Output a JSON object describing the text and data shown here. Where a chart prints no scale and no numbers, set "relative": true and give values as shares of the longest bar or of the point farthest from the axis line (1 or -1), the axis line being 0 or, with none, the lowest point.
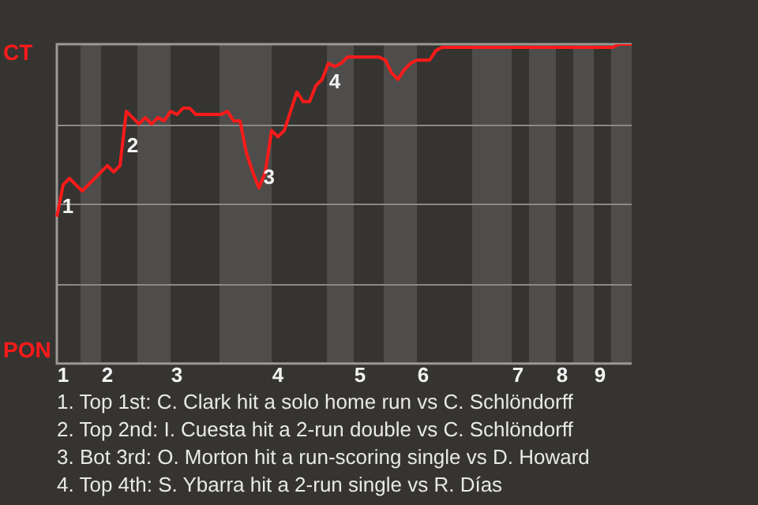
{
  "chart_data": {
    "type": "line",
    "relative": true,
    "legend": false,
    "grid": false,
    "marker": "none",
    "line_style": "solid",
    "categories": [
      null,
      "1",
      null,
      null,
      null,
      null,
      null,
      null,
      "2",
      null,
      null,
      null,
      null,
      null,
      null,
      null,
      null,
      null,
      null,
      "3",
      null,
      null,
      null,
      null,
      null,
      null,
      null,
      null,
      null,
      null,
      null,
      null,
      null,
      null,
      null,
      "4",
      null,
      null,
      null,
      null,
      null,
      null,
      null,
      null,
      null,
      null,
      null,
      null,
      "5",
      null,
      null,
      null,
      null,
      null,
      null,
      null,
      null,
      null,
      "6",
      null,
      null,
      null,
      null,
      null,
      null,
      null,
      null,
      null,
      null,
      null,
      null,
      null,
      null,
      "7",
      null,
      null,
      null,
      null,
      null,
      null,
      "8",
      null,
      null,
      null,
      null,
      null,
      "9",
      null,
      null,
      null,
      null,
      null
    ],
    "series": [
      {
        "color": "#ff1a1a",
        "values": [
          0.46,
          0.56,
          0.58,
          0.56,
          0.54,
          0.56,
          0.58,
          0.6,
          0.62,
          0.6,
          0.62,
          0.79,
          0.77,
          0.75,
          0.77,
          0.75,
          0.77,
          0.76,
          0.79,
          0.78,
          0.8,
          0.8,
          0.78,
          0.78,
          0.78,
          0.78,
          0.78,
          0.79,
          0.76,
          0.76,
          0.66,
          0.6,
          0.55,
          0.6,
          0.73,
          0.71,
          0.73,
          0.79,
          0.85,
          0.82,
          0.82,
          0.87,
          0.89,
          0.94,
          0.93,
          0.94,
          0.96,
          0.96,
          0.96,
          0.96,
          0.96,
          0.96,
          0.95,
          0.91,
          0.89,
          0.92,
          0.94,
          0.95,
          0.95,
          0.95,
          0.98,
          0.99,
          0.99,
          0.99,
          0.99,
          0.99,
          0.99,
          0.99,
          0.99,
          0.99,
          0.99,
          0.99,
          0.99,
          0.99,
          0.99,
          0.99,
          0.99,
          0.99,
          0.99,
          0.99,
          0.99,
          0.99,
          0.99,
          0.99,
          0.99,
          0.99,
          0.99,
          0.99,
          0.99,
          1,
          1,
          1
        ]
      }
    ],
    "ref_lines": [
      {
        "axis": "y",
        "value": 0.25,
        "color": "#8a8986"
      },
      {
        "axis": "y",
        "value": 0.5,
        "color": "#8a8986"
      },
      {
        "axis": "y",
        "value": 0.75,
        "color": "#8a8986"
      }
    ],
    "annotations": [
      "CT",
      "PON",
      "1",
      "2",
      "3",
      "4",
      "1. Top 1st: C. Clark hit a solo home run vs C. Schlöndorff",
      "2. Top 2nd: I. Cuesta hit a 2-run double vs C. Schlöndorff",
      "3. Bot 3rd: O. Morton hit a run-scoring single vs D. Howard",
      "4. Top 4th: S. Ybarra hit a 2-run single vs R. Días"
    ]
  }
}
